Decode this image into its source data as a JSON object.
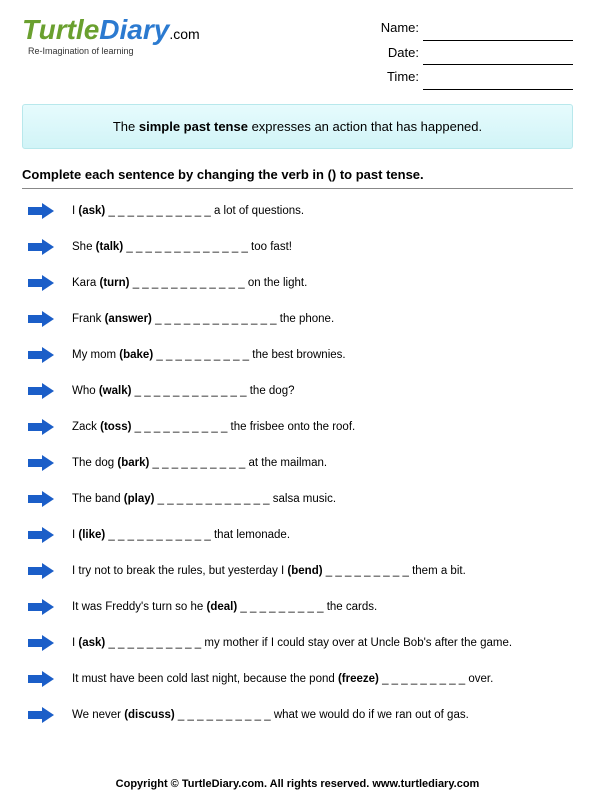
{
  "logo": {
    "word1": "Turtle",
    "word2": "Diary",
    "dotcom": ".com",
    "tagline": "Re-Imagination of learning"
  },
  "meta": {
    "name_label": "Name:",
    "date_label": "Date:",
    "time_label": "Time:"
  },
  "definition": {
    "pre": "The ",
    "bold": "simple past tense",
    "post": " expresses an action that has happened."
  },
  "instructions": "Complete each sentence by changing the verb in () to past tense.",
  "arrow_color": "#1b5ec8",
  "questions": [
    {
      "pre": "I ",
      "verb": "(ask)",
      "blank": " _ _ _ _ _ _ _ _ _  _ _ ",
      "post": "a lot of questions."
    },
    {
      "pre": "She ",
      "verb": "(talk)",
      "blank": " _ _ _ _ _ _ _ _ _ _ _ _ _ ",
      "post": "too fast!"
    },
    {
      "pre": "Kara ",
      "verb": "(turn)",
      "blank": " _ _ _ _ _ _ _ _ _ _ _ _ ",
      "post": "on the light."
    },
    {
      "pre": "Frank ",
      "verb": "(answer)",
      "blank": " _ _ _ _ _ _ _ _ _ _ _ _ _ ",
      "post": "the phone."
    },
    {
      "pre": "My mom ",
      "verb": "(bake)",
      "blank": " _ _ _ _ _ _ _ _ _ _ ",
      "post": "the best brownies."
    },
    {
      "pre": "Who ",
      "verb": "(walk)",
      "blank": " _ _ _ _ _ _ _ _ _ _ _ _ ",
      "post": "the dog?"
    },
    {
      "pre": "Zack ",
      "verb": "(toss)",
      "blank": " _ _ _ _ _ _ _ _ _ _ ",
      "post": "the frisbee onto the roof."
    },
    {
      "pre": "The dog ",
      "verb": "(bark)",
      "blank": " _ _ _ _ _ _ _ _ _ _ ",
      "post": "at the mailman."
    },
    {
      "pre": "The band ",
      "verb": "(play)",
      "blank": " _ _ _ _ _ _ _ _ _ _ _ _ ",
      "post": "salsa music."
    },
    {
      "pre": "I ",
      "verb": "(like)",
      "blank": " _ _ _ _ _ _ _ _ _ _ _ ",
      "post": "that lemonade."
    },
    {
      "pre": "I try not to break the rules, but yesterday I ",
      "verb": "(bend)",
      "blank": "  _ _ _ _ _ _ _ _ _ ",
      "post": "them a bit."
    },
    {
      "pre": "It was Freddy's turn so he ",
      "verb": "(deal)",
      "blank": "  _ _ _ _ _ _ _ _ _ ",
      "post": "the cards."
    },
    {
      "pre": "I ",
      "verb": "(ask)",
      "blank": "  _ _ _ _ _ _ _ _ _ _ ",
      "post": "my mother if I could stay over at Uncle Bob's after the game."
    },
    {
      "pre": "It must have been cold last night, because the pond ",
      "verb": "(freeze)",
      "blank": "  _ _ _ _ _ _ _ _ _ ",
      "post": "over."
    },
    {
      "pre": "We never ",
      "verb": "(discuss)",
      "blank": "  _ _ _ _ _ _ _ _ _ _ ",
      "post": "what we would do if we ran out of gas."
    }
  ],
  "footer": "Copyright © TurtleDiary.com. All rights reserved.   www.turtlediary.com"
}
